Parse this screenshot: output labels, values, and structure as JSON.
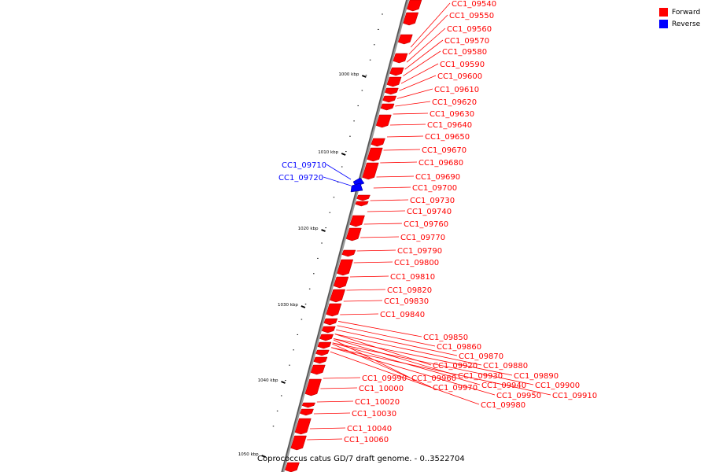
{
  "caption": "Coprococcus catus GD/7 draft genome. - 0..3522704",
  "legend": [
    {
      "label": "Forward",
      "color": "#ff0000"
    },
    {
      "label": "Reverse",
      "color": "#0000ff"
    }
  ],
  "scale_labels": [
    "1000 kbp",
    "1010 kbp",
    "1020 kbp",
    "1030 kbp",
    "1040 kbp",
    "1050 kbp"
  ],
  "genes": [
    {
      "name": "CC1_09540",
      "strand": "forward"
    },
    {
      "name": "CC1_09550",
      "strand": "forward"
    },
    {
      "name": "CC1_09560",
      "strand": "forward"
    },
    {
      "name": "CC1_09570",
      "strand": "forward"
    },
    {
      "name": "CC1_09580",
      "strand": "forward"
    },
    {
      "name": "CC1_09590",
      "strand": "forward"
    },
    {
      "name": "CC1_09600",
      "strand": "forward"
    },
    {
      "name": "CC1_09610",
      "strand": "forward"
    },
    {
      "name": "CC1_09620",
      "strand": "forward"
    },
    {
      "name": "CC1_09630",
      "strand": "forward"
    },
    {
      "name": "CC1_09640",
      "strand": "forward"
    },
    {
      "name": "CC1_09650",
      "strand": "forward"
    },
    {
      "name": "CC1_09670",
      "strand": "forward"
    },
    {
      "name": "CC1_09680",
      "strand": "forward"
    },
    {
      "name": "CC1_09690",
      "strand": "forward"
    },
    {
      "name": "CC1_09700",
      "strand": "forward"
    },
    {
      "name": "CC1_09710",
      "strand": "reverse"
    },
    {
      "name": "CC1_09720",
      "strand": "reverse"
    },
    {
      "name": "CC1_09730",
      "strand": "forward"
    },
    {
      "name": "CC1_09740",
      "strand": "forward"
    },
    {
      "name": "CC1_09760",
      "strand": "forward"
    },
    {
      "name": "CC1_09770",
      "strand": "forward"
    },
    {
      "name": "CC1_09790",
      "strand": "forward"
    },
    {
      "name": "CC1_09800",
      "strand": "forward"
    },
    {
      "name": "CC1_09810",
      "strand": "forward"
    },
    {
      "name": "CC1_09820",
      "strand": "forward"
    },
    {
      "name": "CC1_09830",
      "strand": "forward"
    },
    {
      "name": "CC1_09840",
      "strand": "forward"
    },
    {
      "name": "CC1_09850",
      "strand": "forward"
    },
    {
      "name": "CC1_09860",
      "strand": "forward"
    },
    {
      "name": "CC1_09870",
      "strand": "forward"
    },
    {
      "name": "CC1_09880",
      "strand": "forward"
    },
    {
      "name": "CC1_09890",
      "strand": "forward"
    },
    {
      "name": "CC1_09900",
      "strand": "forward"
    },
    {
      "name": "CC1_09910",
      "strand": "forward"
    },
    {
      "name": "CC1_09920",
      "strand": "forward"
    },
    {
      "name": "CC1_09930",
      "strand": "forward"
    },
    {
      "name": "CC1_09940",
      "strand": "forward"
    },
    {
      "name": "CC1_09950",
      "strand": "forward"
    },
    {
      "name": "CC1_09960",
      "strand": "forward"
    },
    {
      "name": "CC1_09970",
      "strand": "forward"
    },
    {
      "name": "CC1_09980",
      "strand": "forward"
    },
    {
      "name": "CC1_09990",
      "strand": "forward"
    },
    {
      "name": "CC1_10000",
      "strand": "forward"
    },
    {
      "name": "CC1_10020",
      "strand": "forward"
    },
    {
      "name": "CC1_10030",
      "strand": "forward"
    },
    {
      "name": "CC1_10040",
      "strand": "forward"
    },
    {
      "name": "CC1_10060",
      "strand": "forward"
    }
  ]
}
